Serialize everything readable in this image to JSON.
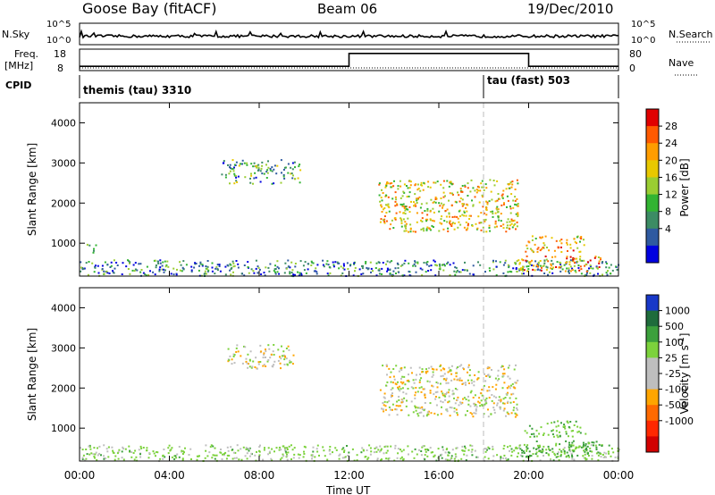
{
  "header": {
    "station": "Goose Bay (fitACF)",
    "beam": "Beam 06",
    "date": "19/Dec/2010"
  },
  "nsky": {
    "label_left": "N.Sky",
    "label_right": "N.Search",
    "ticks_left": [
      "10^5",
      "10^0"
    ],
    "ticks_right": [
      "10^5",
      "10^0"
    ]
  },
  "freq": {
    "label_left_1": "Freq.",
    "label_left_2": "[MHz]",
    "label_right": "Nave",
    "ticks_left": [
      "18",
      "8"
    ],
    "ticks_right": [
      "80",
      "0"
    ]
  },
  "cpid": {
    "label": "CPID",
    "prog1": "themis (tau) 3310",
    "prog2": "tau (fast) 503"
  },
  "power_cbar": {
    "label": "Power [dB]",
    "ticks": [
      "28",
      "24",
      "20",
      "16",
      "12",
      "8",
      "4"
    ],
    "colors": [
      "#e00000",
      "#ff5a00",
      "#ff9d00",
      "#e8c800",
      "#9acd32",
      "#32b432",
      "#3c8c64",
      "#2f5aa0",
      "#0000e0"
    ]
  },
  "velocity_cbar": {
    "label": "Velocity [m s",
    "label_sup": "-1",
    "label_end": "]",
    "ticks": [
      "1000",
      "500",
      "100",
      "25",
      "-25",
      "-100",
      "-500",
      "-1000"
    ],
    "colors": [
      "#1838c8",
      "#1f6c3c",
      "#3ca03c",
      "#7cd23c",
      "#bebebe",
      "#bebebe",
      "#ffa500",
      "#ff6a00",
      "#ff2800",
      "#d20000"
    ]
  },
  "axes": {
    "ylabel": "Slant Range [km]",
    "xlabel": "Time UT",
    "y_ticks": [
      "4000",
      "3000",
      "2000",
      "1000"
    ],
    "x_ticks": [
      "00:00",
      "04:00",
      "08:00",
      "12:00",
      "16:00",
      "20:00",
      "00:00"
    ]
  },
  "chart_data": [
    {
      "type": "line",
      "title": "N.Sky",
      "x_range_hours": [
        0,
        24
      ],
      "ylim": [
        1,
        100000
      ],
      "series": [
        {
          "values": "near 10^0 level with small noise"
        }
      ]
    },
    {
      "type": "line",
      "title": "Freq.",
      "x_range_hours": [
        0,
        24
      ],
      "ylim": [
        8,
        18
      ],
      "series": [
        {
          "x": [
            0,
            12,
            12,
            20,
            20,
            24
          ],
          "values": [
            10,
            10,
            16,
            16,
            10,
            10
          ]
        }
      ]
    },
    {
      "type": "heatmap",
      "title": "Power [dB]",
      "xlabel": "Time UT",
      "ylabel": "Slant Range [km]",
      "x_range_hours": [
        0,
        24
      ],
      "ylim": [
        180,
        4500
      ],
      "clim": [
        0,
        30
      ],
      "regions": [
        {
          "t": [
            0,
            24
          ],
          "range": [
            200,
            600
          ],
          "value": 8
        },
        {
          "t": [
            0.3,
            0.7
          ],
          "range": [
            700,
            1000
          ],
          "value": 12
        },
        {
          "t": [
            6.3,
            9.8
          ],
          "range": [
            2500,
            3100
          ],
          "value": 10
        },
        {
          "t": [
            13.3,
            19.5
          ],
          "range": [
            1300,
            2600
          ],
          "value": 18
        },
        {
          "t": [
            19.8,
            22.5
          ],
          "range": [
            800,
            1200
          ],
          "value": 20
        },
        {
          "t": [
            19.5,
            23.3
          ],
          "range": [
            300,
            700
          ],
          "value": 22
        }
      ]
    },
    {
      "type": "heatmap",
      "title": "Velocity [m s-1]",
      "xlabel": "Time UT",
      "ylabel": "Slant Range [km]",
      "x_range_hours": [
        0,
        24
      ],
      "ylim": [
        180,
        4500
      ],
      "clim": [
        -1000,
        1000
      ],
      "regions": [
        {
          "t": [
            0,
            24
          ],
          "range": [
            200,
            600
          ],
          "value": 50
        },
        {
          "t": [
            6.5,
            9.5
          ],
          "range": [
            2500,
            3100
          ],
          "value": 0
        },
        {
          "t": [
            13.3,
            19.5
          ],
          "range": [
            1300,
            2600
          ],
          "value": 0
        },
        {
          "t": [
            19.8,
            22.5
          ],
          "range": [
            800,
            1200
          ],
          "value": 80
        },
        {
          "t": [
            19.5,
            23.3
          ],
          "range": [
            300,
            700
          ],
          "value": 120
        }
      ]
    }
  ]
}
